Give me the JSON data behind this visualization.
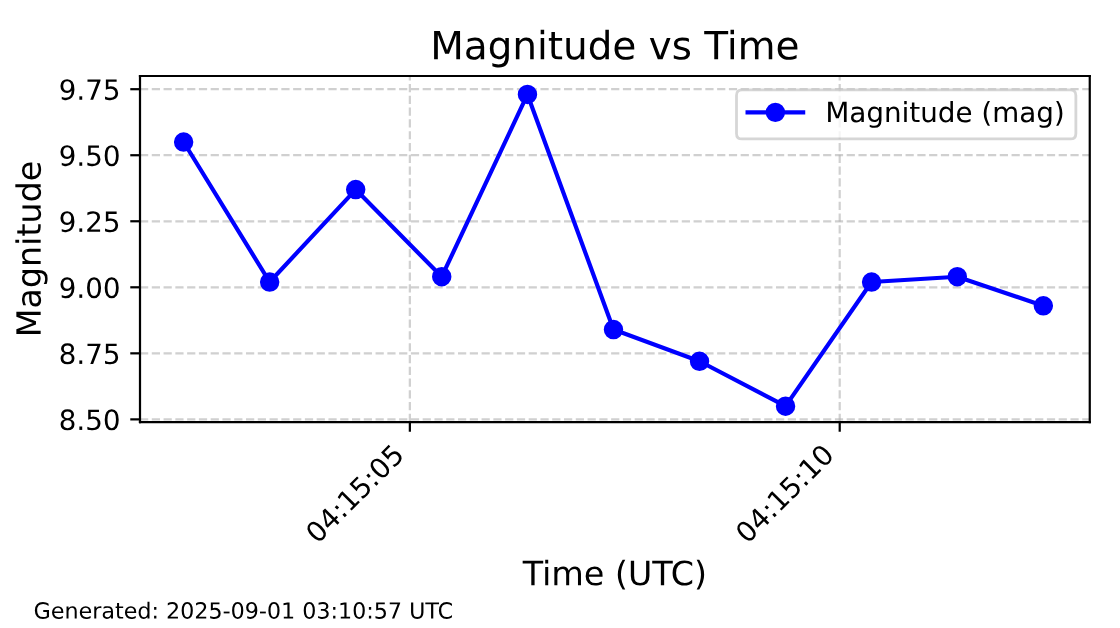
{
  "chart_data": {
    "type": "line",
    "title": "Magnitude vs Time",
    "xlabel": "Time (UTC)",
    "ylabel": "Magnitude",
    "x": [
      4.250658,
      4.250936,
      4.251214,
      4.251492,
      4.251769,
      4.252047,
      4.252325,
      4.252603,
      4.252881,
      4.253158,
      4.253436
    ],
    "series": [
      {
        "name": "Magnitude (mag)",
        "color": "#0000ff",
        "values": [
          9.55,
          9.02,
          9.37,
          9.04,
          9.73,
          8.84,
          8.72,
          8.55,
          9.02,
          9.04,
          8.93
        ]
      }
    ],
    "xlim": [
      4.250517,
      4.253586
    ],
    "xticks": [
      {
        "value": 4.251389,
        "label": "04:15:05"
      },
      {
        "value": 4.252778,
        "label": "04:15:10"
      }
    ],
    "ylim": [
      8.49,
      9.8
    ],
    "yticks": [
      {
        "value": 8.5,
        "label": "8.50"
      },
      {
        "value": 8.75,
        "label": "8.75"
      },
      {
        "value": 9.0,
        "label": "9.00"
      },
      {
        "value": 9.25,
        "label": "9.25"
      },
      {
        "value": 9.5,
        "label": "9.50"
      },
      {
        "value": 9.75,
        "label": "9.75"
      }
    ],
    "grid": true,
    "legend": "top right",
    "marker": "circle",
    "line_style": "solid",
    "annotations": [
      "Generated: 2025-09-01 03:10:57 UTC"
    ]
  }
}
